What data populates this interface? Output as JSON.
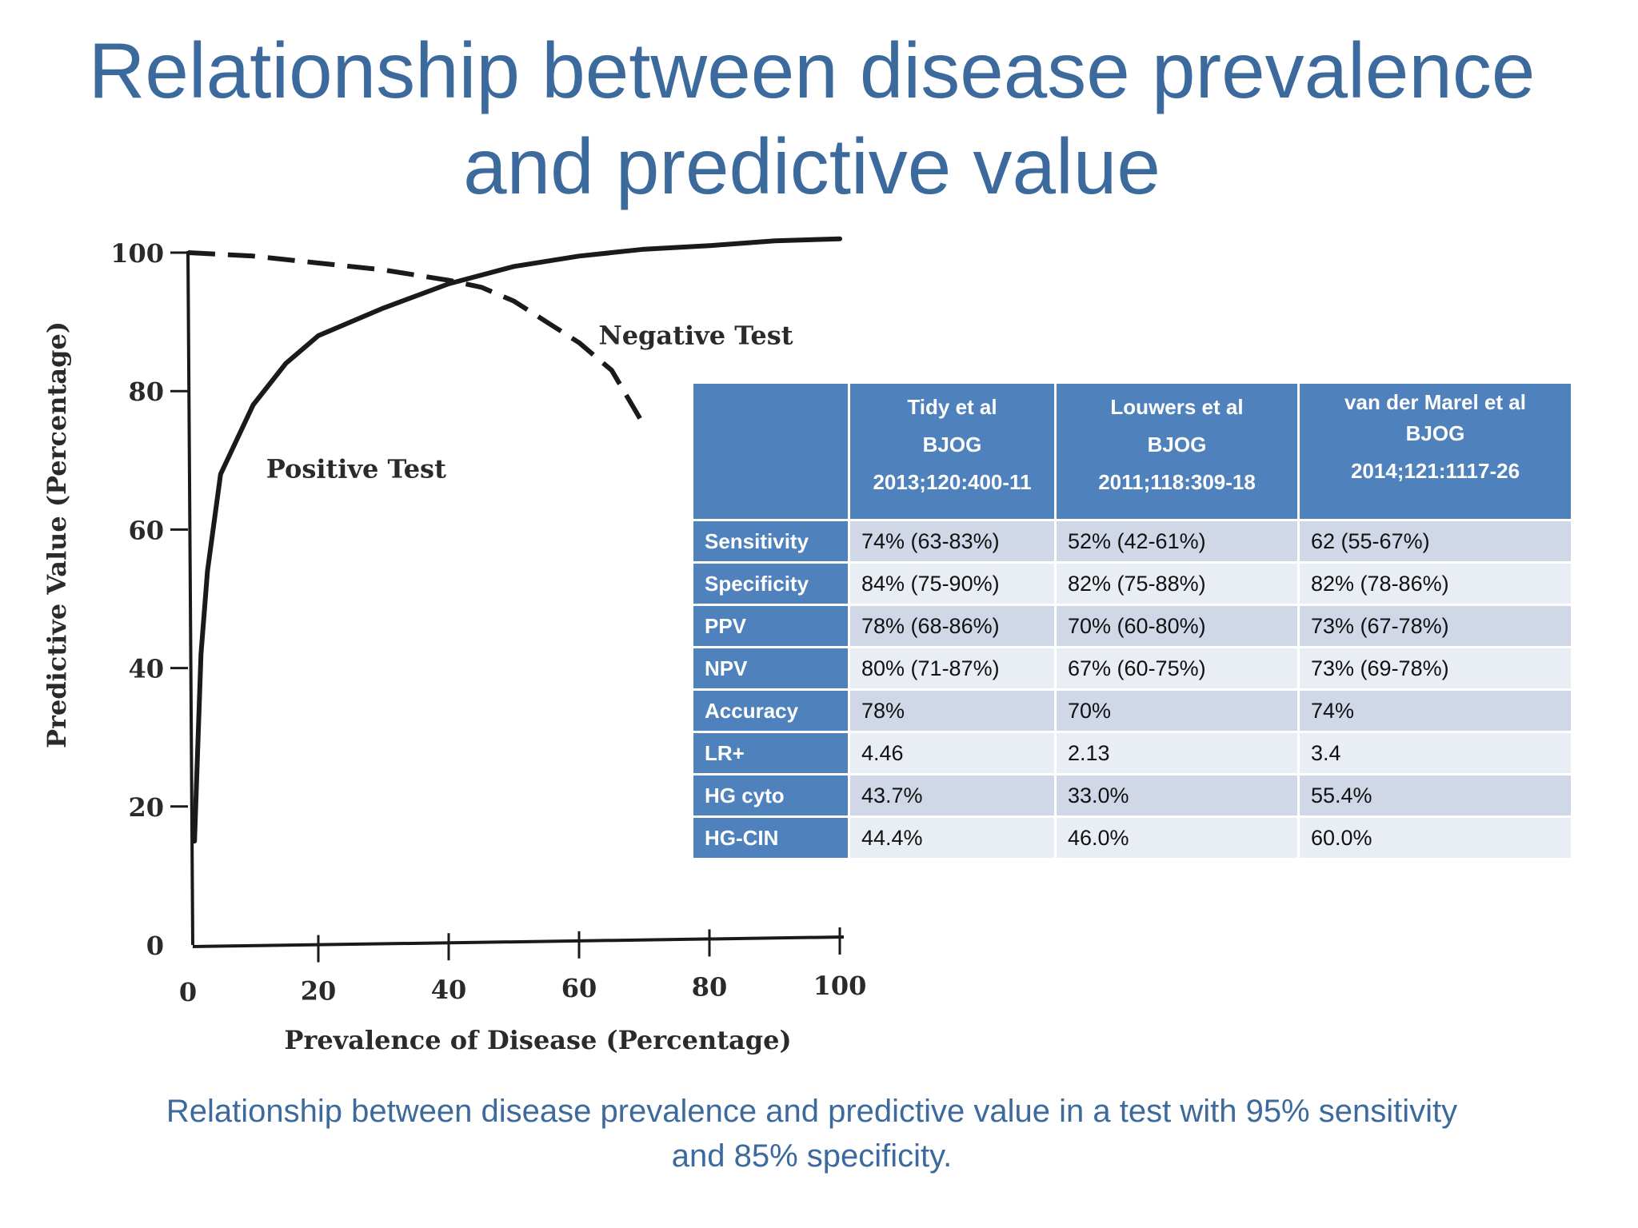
{
  "title": {
    "line1": "Relationship between disease prevalence",
    "line2": "and predictive value"
  },
  "chart_data": {
    "type": "line",
    "xlabel": "Prevalence of Disease (Percentage)",
    "ylabel": "Predictive Value (Percentage)",
    "xlim": [
      0,
      100
    ],
    "ylim": [
      0,
      100
    ],
    "x_ticks": [
      0,
      20,
      40,
      60,
      80,
      100
    ],
    "y_ticks": [
      0,
      20,
      40,
      60,
      80,
      100
    ],
    "grid": false,
    "series": [
      {
        "name": "Positive Test",
        "style": "solid",
        "x": [
          1,
          2,
          3,
          5,
          10,
          15,
          20,
          30,
          40,
          50,
          60,
          70,
          80,
          90,
          100
        ],
        "y": [
          15,
          42,
          54,
          68,
          78,
          84,
          88,
          92,
          95.5,
          98,
          99.5,
          100.5,
          101,
          101.7,
          102
        ]
      },
      {
        "name": "Negative Test",
        "style": "dashed",
        "x": [
          0,
          10,
          20,
          30,
          40,
          45,
          50,
          55,
          60,
          65,
          70
        ],
        "y": [
          100,
          99.5,
          98.5,
          97.5,
          96,
          95,
          93,
          90,
          87,
          83,
          75
        ]
      }
    ]
  },
  "table": {
    "columns": [
      {
        "line1": "Tidy et al",
        "line2": "BJOG",
        "line3": "2013;120:400-11"
      },
      {
        "line1": "Louwers et al",
        "line2": "BJOG",
        "line3": "2011;118:309-18"
      },
      {
        "line1": "van der Marel et al",
        "line2": "BJOG",
        "line3": "2014;121:1117-26"
      }
    ],
    "rows": [
      {
        "label": "Sensitivity",
        "values": [
          "74% (63-83%)",
          "52% (42-61%)",
          "62 (55-67%)"
        ]
      },
      {
        "label": "Specificity",
        "values": [
          "84% (75-90%)",
          "82% (75-88%)",
          "82% (78-86%)"
        ]
      },
      {
        "label": "PPV",
        "values": [
          "78% (68-86%)",
          "70% (60-80%)",
          "73% (67-78%)"
        ]
      },
      {
        "label": "NPV",
        "values": [
          "80% (71-87%)",
          "67% (60-75%)",
          "73% (69-78%)"
        ]
      },
      {
        "label": "Accuracy",
        "values": [
          "78%",
          "70%",
          "74%"
        ]
      },
      {
        "label": "LR+",
        "values": [
          "4.46",
          "2.13",
          "3.4"
        ]
      },
      {
        "label": "HG cyto",
        "values": [
          "43.7%",
          "33.0%",
          "55.4%"
        ]
      },
      {
        "label": "HG-CIN",
        "values": [
          "44.4%",
          "46.0%",
          "60.0%"
        ]
      }
    ]
  },
  "caption": {
    "line1": "Relationship between disease prevalence and predictive value in a test with 95% sensitivity",
    "line2": "and 85% specificity."
  },
  "colors": {
    "title": "#3c6a9c",
    "table_header": "#4f81bd",
    "row_shade_a": "#d0d8e8",
    "row_shade_b": "#e9edf4",
    "ink": "#1a1a1a"
  }
}
